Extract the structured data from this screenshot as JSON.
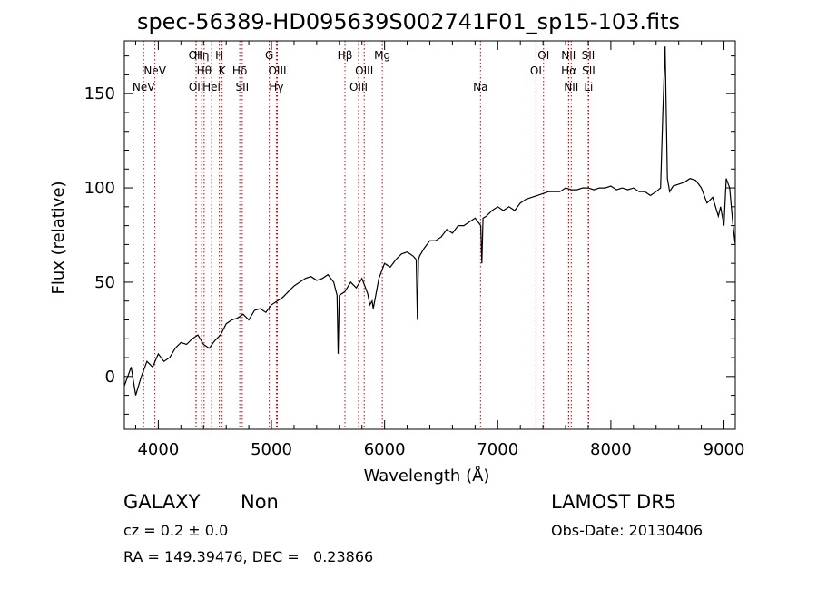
{
  "chart_data": {
    "type": "line",
    "title": "spec-56389-HD095639S002741F01_sp15-103.fits",
    "xlabel": "Wavelength (Å)",
    "ylabel": "Flux (relative)",
    "xlim": [
      3700,
      9100
    ],
    "ylim": [
      -28,
      178
    ],
    "xticks": [
      4000,
      5000,
      6000,
      7000,
      8000,
      9000
    ],
    "yticks": [
      0,
      50,
      100,
      150
    ],
    "grid": false,
    "line_color": "#000000",
    "marker_color": "#cc0000",
    "series": [
      {
        "x": [
          3700,
          3760,
          3800,
          3850,
          3900,
          3950,
          4000,
          4050,
          4100,
          4150,
          4200,
          4250,
          4300,
          4350,
          4400,
          4450,
          4500,
          4550,
          4600,
          4650,
          4700,
          4750,
          4800,
          4850,
          4900,
          4950,
          5000,
          5050,
          5100,
          5150,
          5200,
          5250,
          5300,
          5350,
          5400,
          5450,
          5500,
          5550,
          5580,
          5590,
          5600,
          5650,
          5700,
          5750,
          5800,
          5850,
          5870,
          5890,
          5900,
          5950,
          6000,
          6050,
          6100,
          6150,
          6200,
          6250,
          6280,
          6290,
          6300,
          6310,
          6350,
          6400,
          6450,
          6500,
          6550,
          6600,
          6650,
          6700,
          6750,
          6800,
          6850,
          6860,
          6870,
          6900,
          6950,
          7000,
          7050,
          7100,
          7150,
          7200,
          7250,
          7300,
          7350,
          7400,
          7450,
          7500,
          7550,
          7600,
          7650,
          7700,
          7750,
          7800,
          7850,
          7900,
          7950,
          8000,
          8050,
          8100,
          8150,
          8200,
          8250,
          8300,
          8350,
          8400,
          8440,
          8460,
          8480,
          8500,
          8520,
          8550,
          8600,
          8650,
          8700,
          8750,
          8800,
          8850,
          8900,
          8950,
          8970,
          9000,
          9020,
          9050,
          9080,
          9100
        ],
        "y": [
          -5,
          5,
          -10,
          0,
          8,
          5,
          12,
          8,
          10,
          15,
          18,
          17,
          20,
          22,
          17,
          15,
          19,
          22,
          28,
          30,
          31,
          33,
          30,
          35,
          36,
          34,
          38,
          40,
          42,
          45,
          48,
          50,
          52,
          53,
          51,
          52,
          54,
          50,
          43,
          12,
          43,
          45,
          50,
          47,
          52,
          44,
          38,
          40,
          36,
          52,
          60,
          58,
          62,
          65,
          66,
          64,
          62,
          30,
          62,
          64,
          68,
          72,
          72,
          74,
          78,
          76,
          80,
          80,
          82,
          84,
          80,
          60,
          84,
          85,
          88,
          90,
          88,
          90,
          88,
          92,
          94,
          95,
          96,
          97,
          98,
          98,
          98,
          100,
          99,
          99,
          100,
          100,
          99,
          100,
          100,
          101,
          99,
          100,
          99,
          100,
          98,
          98,
          96,
          98,
          100,
          140,
          175,
          105,
          98,
          101,
          102,
          103,
          105,
          104,
          100,
          92,
          95,
          85,
          90,
          80,
          105,
          100,
          80,
          70
        ]
      }
    ],
    "markers": [
      {
        "label": "NeV",
        "x": 3870,
        "row": 3
      },
      {
        "label": "NeV",
        "x": 3970,
        "row": 2
      },
      {
        "label": "OII",
        "x": 4333,
        "row": 1
      },
      {
        "label": "OII",
        "x": 4335,
        "row": 3
      },
      {
        "label": "Hη",
        "x": 4383,
        "row": 1
      },
      {
        "label": "Hθ",
        "x": 4405,
        "row": 2
      },
      {
        "label": "HeI",
        "x": 4471,
        "row": 3
      },
      {
        "label": "H",
        "x": 4540,
        "row": 1
      },
      {
        "label": "K",
        "x": 4564,
        "row": 2
      },
      {
        "label": "Hδ",
        "x": 4720,
        "row": 2
      },
      {
        "label": "SII",
        "x": 4742,
        "row": 3
      },
      {
        "label": "G",
        "x": 4981,
        "row": 1
      },
      {
        "label": "OIII",
        "x": 5052,
        "row": 2
      },
      {
        "label": "Hγ",
        "x": 5043,
        "row": 3
      },
      {
        "label": "Hβ",
        "x": 5650,
        "row": 1
      },
      {
        "label": "OIII",
        "x": 5770,
        "row": 3
      },
      {
        "label": "OIII",
        "x": 5820,
        "row": 2
      },
      {
        "label": "Mg",
        "x": 5980,
        "row": 1
      },
      {
        "label": "Na",
        "x": 6848,
        "row": 3
      },
      {
        "label": "OI",
        "x": 7338,
        "row": 2
      },
      {
        "label": "OI",
        "x": 7405,
        "row": 1
      },
      {
        "label": "Hα",
        "x": 7628,
        "row": 2
      },
      {
        "label": "NII",
        "x": 7626,
        "row": 1
      },
      {
        "label": "NII",
        "x": 7650,
        "row": 3
      },
      {
        "label": "SII",
        "x": 7800,
        "row": 1
      },
      {
        "label": "SII",
        "x": 7804,
        "row": 2
      },
      {
        "label": "Li",
        "x": 7803,
        "row": 3
      }
    ]
  },
  "info": {
    "class": "GALAXY",
    "subclass": "Non",
    "cz": "cz = 0.2 ± 0.0",
    "radec": "RA = 149.39476, DEC =   0.23866",
    "survey": "LAMOST DR5",
    "obsdate": "Obs-Date: 20130406"
  }
}
